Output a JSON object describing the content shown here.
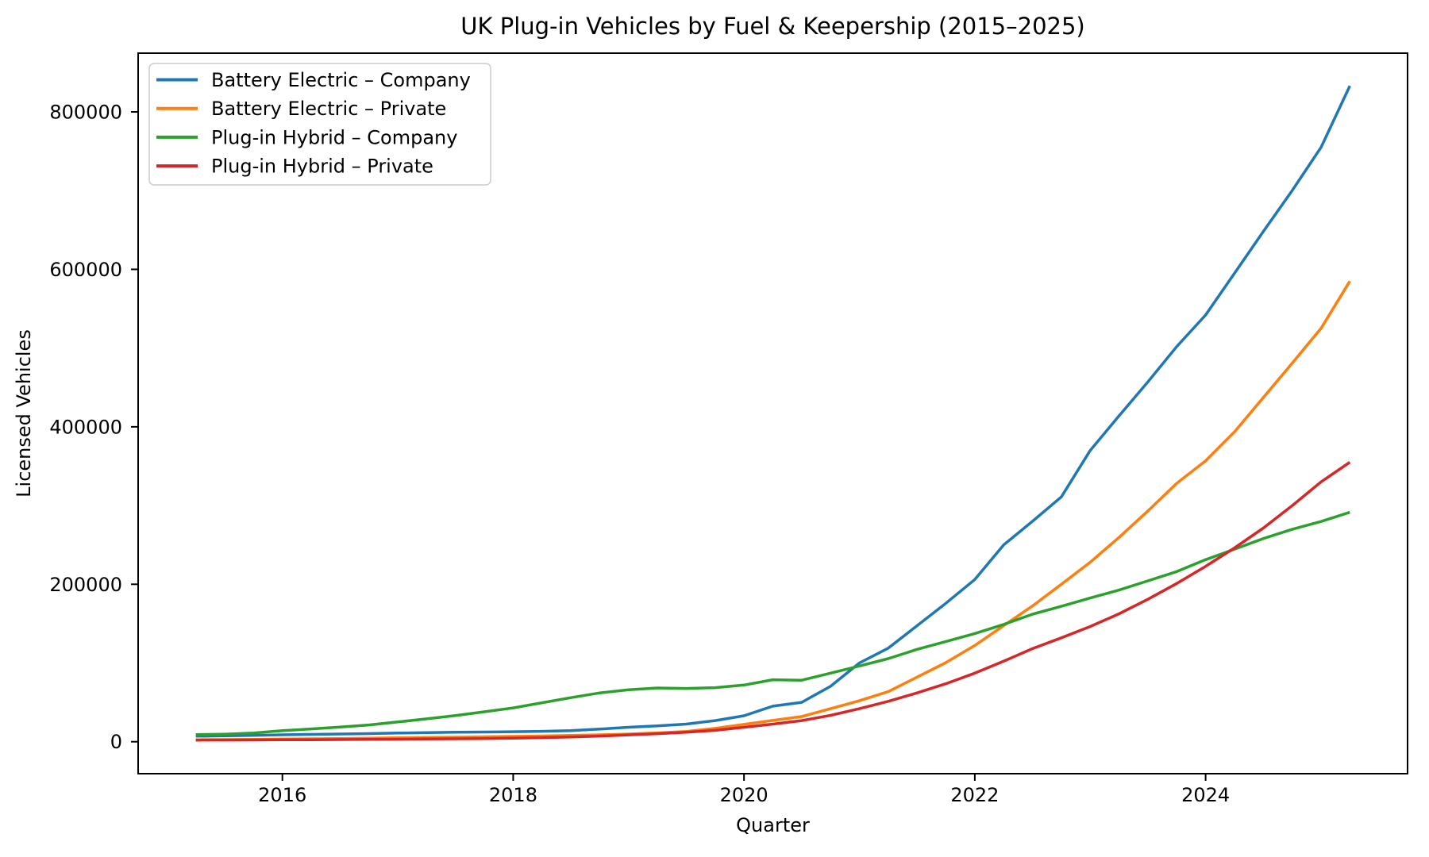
{
  "chart_data": {
    "type": "line",
    "title": "UK Plug-in Vehicles by Fuel & Keepership (2015–2025)",
    "xlabel": "Quarter",
    "ylabel": "Licensed Vehicles",
    "xlim": [
      2014.75,
      2025.75
    ],
    "ylim": [
      -40600,
      874600
    ],
    "grid": false,
    "legend_position": "upper left",
    "x_tick_labels": [
      "2016",
      "2018",
      "2020",
      "2022",
      "2024"
    ],
    "x_tick_values": [
      2016,
      2018,
      2020,
      2022,
      2024
    ],
    "y_tick_labels": [
      "0",
      "200000",
      "400000",
      "600000",
      "800000"
    ],
    "y_tick_values": [
      0,
      200000,
      400000,
      600000,
      800000
    ],
    "x": [
      2015.25,
      2015.5,
      2015.75,
      2016,
      2016.25,
      2016.5,
      2016.75,
      2017,
      2017.25,
      2017.5,
      2017.75,
      2018,
      2018.25,
      2018.5,
      2018.75,
      2019,
      2019.25,
      2019.5,
      2019.75,
      2020,
      2020.25,
      2020.5,
      2020.75,
      2021,
      2021.25,
      2021.5,
      2021.75,
      2022,
      2022.25,
      2022.5,
      2022.75,
      2023,
      2023.25,
      2023.5,
      2023.75,
      2024,
      2024.25,
      2024.5,
      2024.75,
      2025,
      2025.25
    ],
    "quarters": [
      "2015Q2",
      "2015Q3",
      "2015Q4",
      "2016Q1",
      "2016Q2",
      "2016Q3",
      "2016Q4",
      "2017Q1",
      "2017Q2",
      "2017Q3",
      "2017Q4",
      "2018Q1",
      "2018Q2",
      "2018Q3",
      "2018Q4",
      "2019Q1",
      "2019Q2",
      "2019Q3",
      "2019Q4",
      "2020Q1",
      "2020Q2",
      "2020Q3",
      "2020Q4",
      "2021Q1",
      "2021Q2",
      "2021Q3",
      "2021Q4",
      "2022Q1",
      "2022Q2",
      "2022Q3",
      "2022Q4",
      "2023Q1",
      "2023Q2",
      "2023Q3",
      "2023Q4",
      "2024Q1",
      "2024Q2",
      "2024Q3",
      "2024Q4",
      "2025Q1",
      "2025Q2"
    ],
    "series": [
      {
        "name": "Battery Electric – Company",
        "color": "#1f77b4",
        "values": [
          7000,
          7500,
          8000,
          8800,
          9300,
          9800,
          10300,
          11000,
          11500,
          12000,
          12300,
          12700,
          13200,
          14100,
          16000,
          18400,
          20100,
          22400,
          26800,
          33000,
          45200,
          50000,
          70400,
          100000,
          118900,
          147400,
          175900,
          206000,
          250000,
          280000,
          311000,
          370000,
          414000,
          457000,
          502000,
          542000,
          595000,
          648000,
          700000,
          755000,
          833000
        ]
      },
      {
        "name": "Battery Electric – Private",
        "color": "#ff7f0e",
        "values": [
          2500,
          2700,
          3000,
          3300,
          3700,
          4100,
          4500,
          5000,
          5400,
          5800,
          6300,
          6800,
          7300,
          8000,
          8800,
          9800,
          11200,
          13000,
          17000,
          22000,
          27000,
          32000,
          41900,
          52000,
          63600,
          82100,
          100500,
          122300,
          147400,
          172500,
          200000,
          228000,
          259600,
          293100,
          328300,
          356800,
          393600,
          437200,
          480700,
          525000,
          585000
        ]
      },
      {
        "name": "Plug-in Hybrid – Company",
        "color": "#2ca02c",
        "values": [
          9000,
          9600,
          11000,
          14000,
          16200,
          18600,
          21300,
          25100,
          29000,
          33200,
          38000,
          43000,
          49500,
          56000,
          62000,
          66000,
          68300,
          67700,
          68700,
          72000,
          78700,
          78100,
          87100,
          96200,
          105500,
          117300,
          127300,
          137400,
          149000,
          162000,
          172000,
          182600,
          192600,
          204300,
          216100,
          231200,
          244500,
          258000,
          269700,
          279700,
          291400
        ]
      },
      {
        "name": "Plug-in Hybrid – Private",
        "color": "#d62728",
        "values": [
          2000,
          2100,
          2200,
          2400,
          2500,
          2700,
          2900,
          3100,
          3400,
          3700,
          4100,
          4500,
          5200,
          6000,
          7200,
          8700,
          10200,
          12000,
          14400,
          18400,
          22400,
          26800,
          33500,
          41900,
          51300,
          62000,
          73700,
          87100,
          102200,
          118300,
          132000,
          146400,
          162500,
          180900,
          201000,
          222800,
          246200,
          271400,
          299800,
          330000,
          355000
        ]
      }
    ],
    "style": {
      "line_width": 3.5,
      "spine_color": "#000000",
      "legend_border_color": "#cccccc",
      "background": "#ffffff"
    }
  }
}
